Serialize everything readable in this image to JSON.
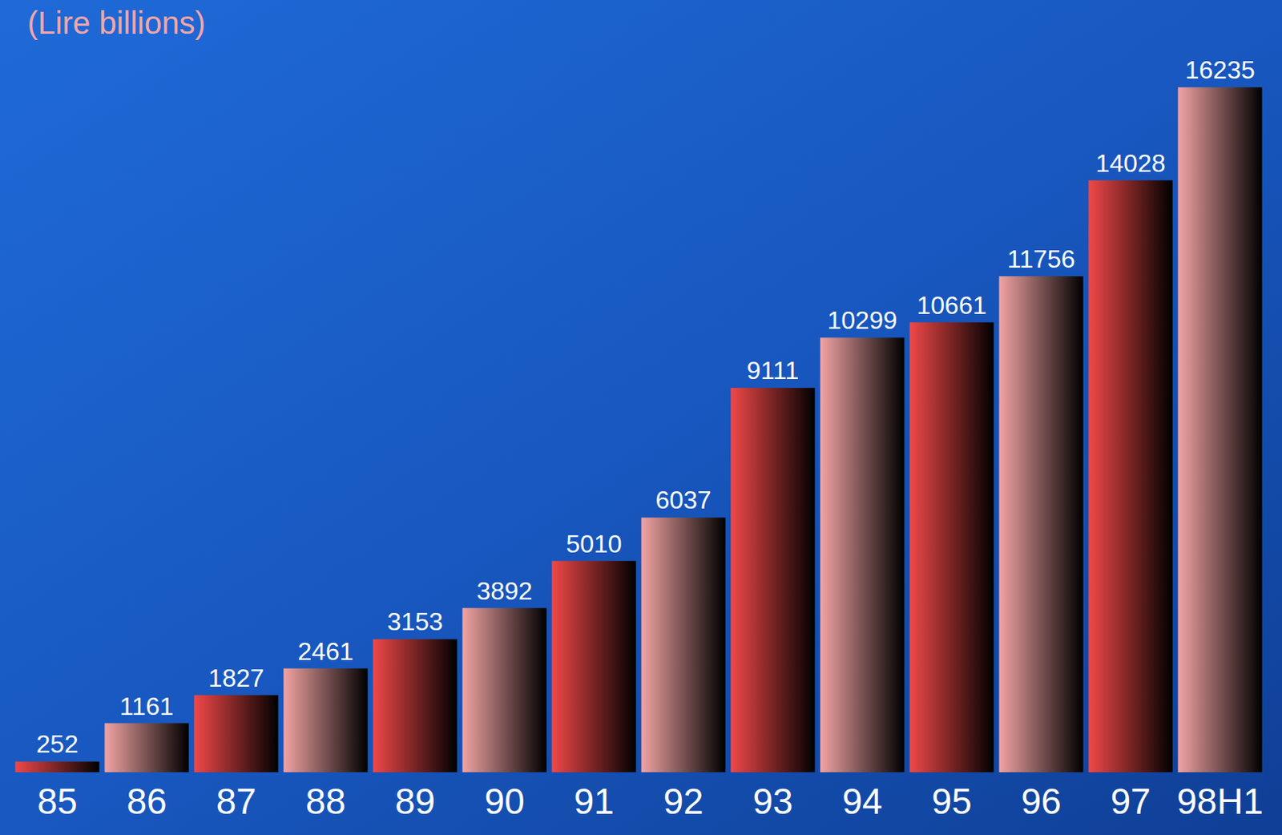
{
  "chart_data": {
    "type": "bar",
    "title": "(Lire billions)",
    "categories": [
      "85",
      "86",
      "87",
      "88",
      "89",
      "90",
      "91",
      "92",
      "93",
      "94",
      "95",
      "96",
      "97",
      "98H1"
    ],
    "values": [
      252,
      1161,
      1827,
      2461,
      3153,
      3892,
      5010,
      6037,
      9111,
      10299,
      10661,
      11756,
      14028,
      16235
    ],
    "colors": [
      "#f04848",
      "#f2a3a3",
      "#f04848",
      "#f2a3a3",
      "#f04848",
      "#f2a3a3",
      "#f04848",
      "#f2a3a3",
      "#f04848",
      "#f2a3a3",
      "#f04848",
      "#f2a3a3",
      "#f04848",
      "#f2a3a3"
    ],
    "ylim": [
      0,
      17000
    ],
    "grid": false,
    "data_labels": true,
    "tick_labels": "x"
  }
}
